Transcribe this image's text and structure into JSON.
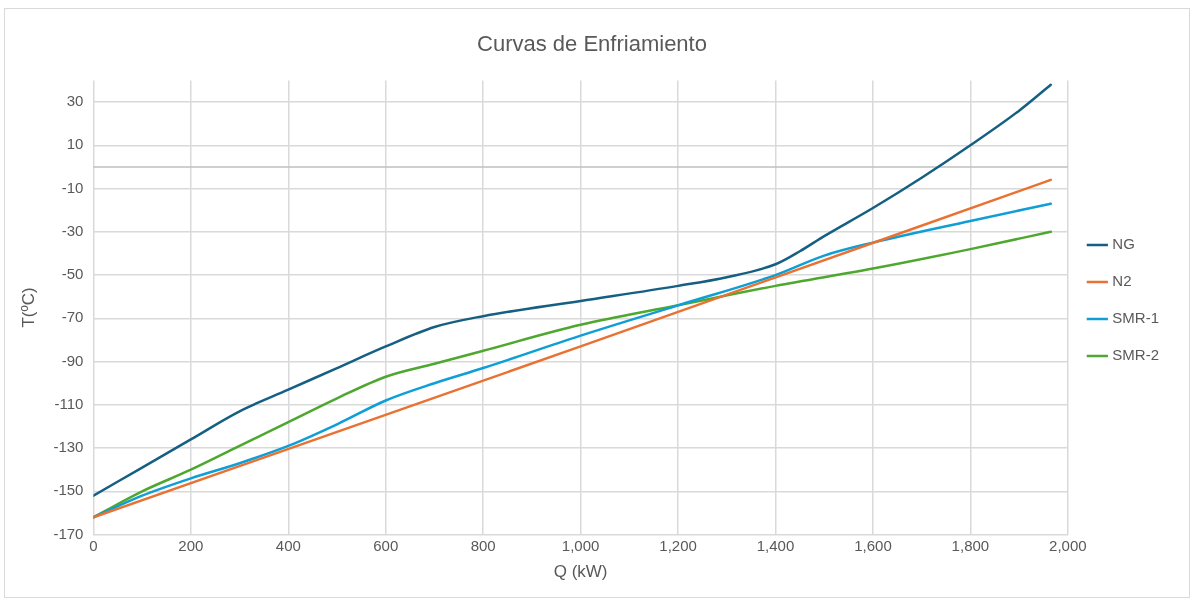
{
  "chart_data": {
    "type": "line",
    "title": "Curvas de Enfriamiento",
    "xlabel": "Q (kW)",
    "ylabel": "T(ºC)",
    "xlim": [
      0,
      2000
    ],
    "xticks": [
      0,
      200,
      400,
      600,
      800,
      {
        "value": 1000,
        "label": "1,000"
      },
      {
        "value": 1200,
        "label": "1,200"
      },
      {
        "value": 1400,
        "label": "1,400"
      },
      {
        "value": 1600,
        "label": "1,600"
      },
      {
        "value": 1800,
        "label": "1,800"
      },
      {
        "value": 2000,
        "label": "2,000"
      }
    ],
    "ylim": [
      -170,
      40
    ],
    "yticks": [
      -170,
      -150,
      -130,
      -110,
      -90,
      -70,
      -50,
      -30,
      -10,
      10,
      30
    ],
    "grid": true,
    "legend": "right",
    "marker": "none",
    "line_style": "solid",
    "ref_lines": [
      {
        "axis": "y",
        "value": 0,
        "color": "#bfbfbf"
      }
    ],
    "series": [
      {
        "name": "NG",
        "color": "#156082",
        "x": [
          0,
          100,
          200,
          300,
          400,
          500,
          600,
          700,
          800,
          1000,
          1200,
          1300,
          1400,
          1450,
          1500,
          1600,
          1700,
          1800,
          1900,
          1965
        ],
        "values": [
          -152,
          -139,
          -126,
          -113,
          -103,
          -93,
          -83,
          -74,
          -69,
          -62,
          -55,
          -51,
          -45,
          -39,
          -32,
          -19,
          -5,
          10,
          26,
          38
        ]
      },
      {
        "name": "N2",
        "color": "#e97132",
        "x": [
          0,
          1000,
          1965
        ],
        "values": [
          -162,
          -83,
          -6
        ]
      },
      {
        "name": "SMR-1",
        "color": "#0f9ed5",
        "x": [
          0,
          100,
          200,
          300,
          400,
          500,
          600,
          700,
          800,
          1000,
          1200,
          1400,
          1500,
          1600,
          1800,
          1965
        ],
        "values": [
          -162,
          -152,
          -144,
          -137,
          -129,
          -119,
          -108,
          -100,
          -93,
          -78,
          -64,
          -50,
          -41,
          -35,
          -25,
          -17
        ]
      },
      {
        "name": "SMR-2",
        "color": "#4ea72e",
        "x": [
          0,
          100,
          200,
          300,
          400,
          500,
          600,
          700,
          800,
          1000,
          1200,
          1400,
          1600,
          1800,
          1965
        ],
        "values": [
          -162,
          -150,
          -140,
          -129,
          -118,
          -107,
          -97,
          -91,
          -85,
          -73,
          -64,
          -55,
          -47,
          -38,
          -30
        ]
      }
    ]
  }
}
